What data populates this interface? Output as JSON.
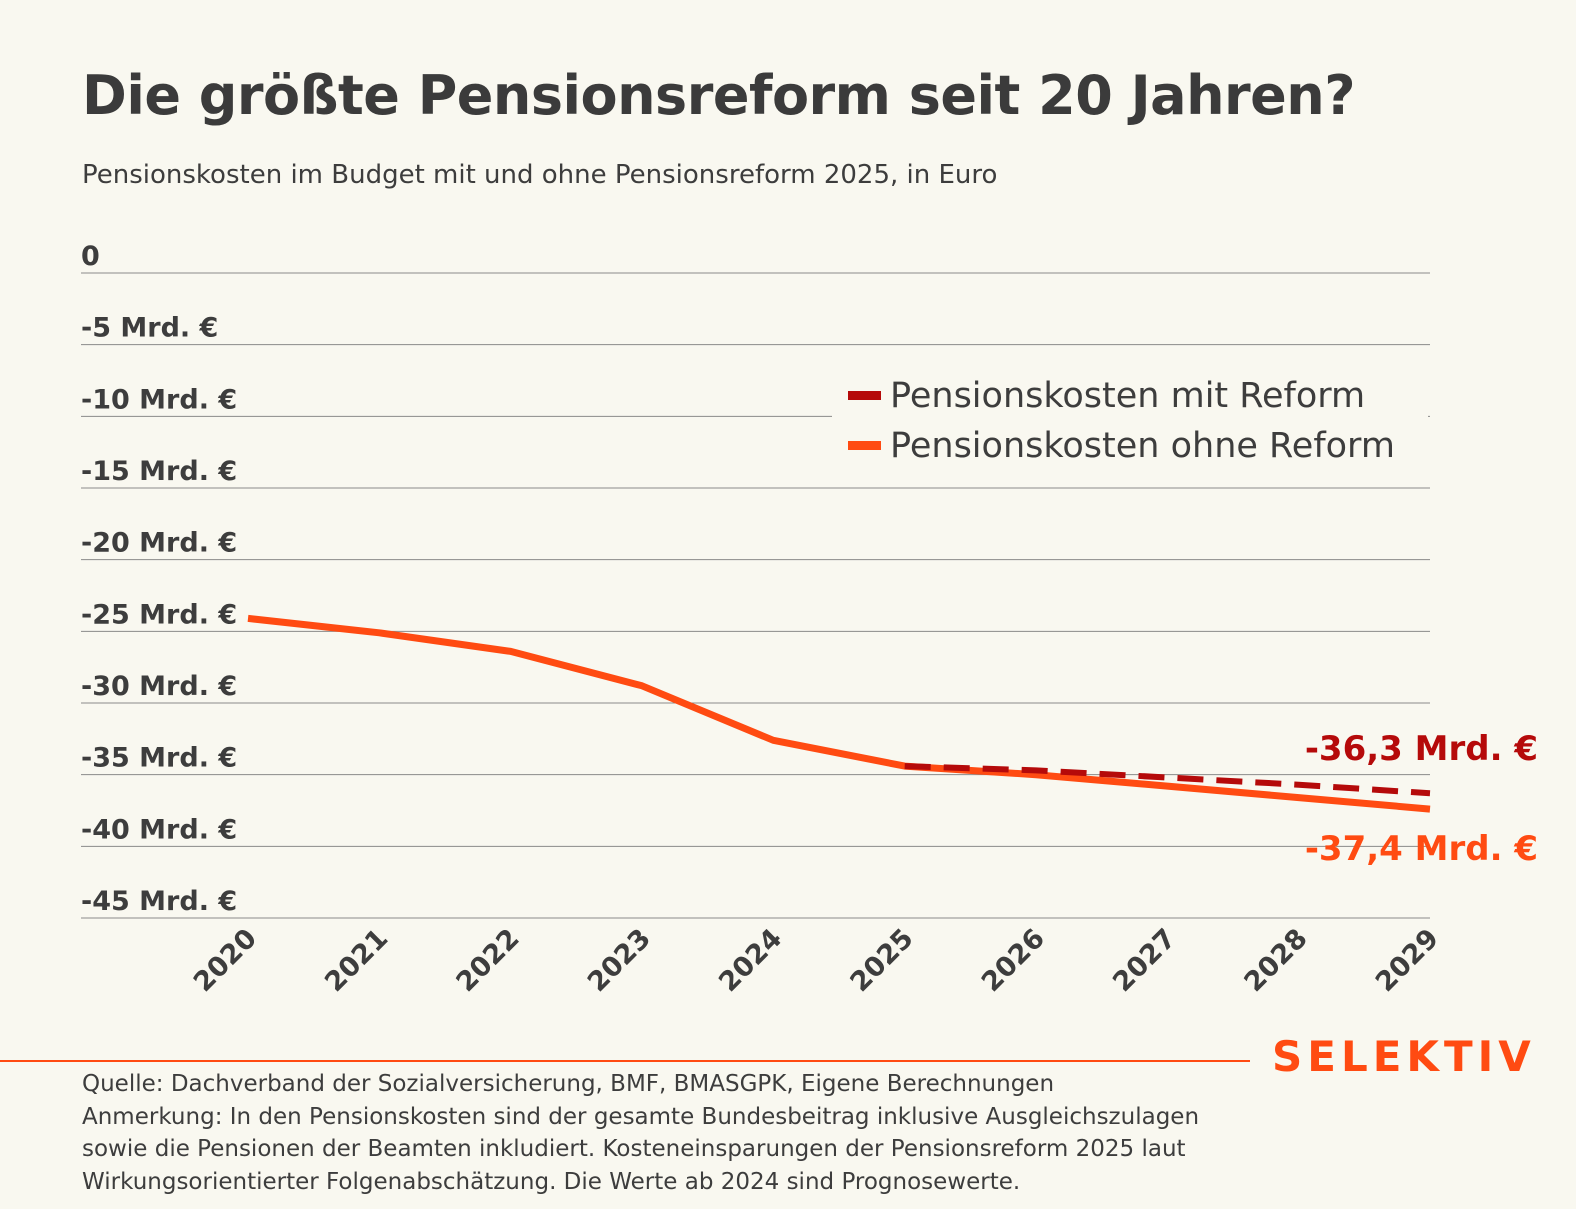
{
  "title": "Die größte Pensionsreform seit 20 Jahren?",
  "subtitle": "Pensionskosten im Budget mit und ohne Pensionsreform 2025, in Euro",
  "brand": "SELEKTIV",
  "notes": [
    "Quelle: Dachverband der Sozialversicherung, BMF, BMASGPK, Eigene Berechnungen",
    "Anmerkung: In den Pensionskosten sind der gesamte Bundesbeitrag inklusive Ausgleichszulagen",
    "sowie die Pensionen der Beamten inkludiert. Kosteneinsparungen der Pensionsreform 2025 laut",
    "Wirkungsorientierter Folgenabschätzung. Die Werte ab 2024 sind Prognosewerte."
  ],
  "chart_data": {
    "type": "line",
    "title": "Die größte Pensionsreform seit 20 Jahren?",
    "subtitle": "Pensionskosten im Budget mit und ohne Pensionsreform 2025, in Euro",
    "xlabel": "",
    "ylabel": "",
    "x": [
      "2020",
      "2021",
      "2022",
      "2023",
      "2024",
      "2025",
      "2026",
      "2027",
      "2028",
      "2029"
    ],
    "ylim": [
      -45,
      0
    ],
    "y_ticks": [
      0,
      -5,
      -10,
      -15,
      -20,
      -25,
      -30,
      -35,
      -40,
      -45
    ],
    "y_tick_labels": [
      "0",
      "-5 Mrd. €",
      "-10 Mrd. €",
      "-15 Mrd. €",
      "-20 Mrd. €",
      "-25 Mrd. €",
      "-30 Mrd. €",
      "-35 Mrd. €",
      "-40 Mrd. €",
      "-45 Mrd. €"
    ],
    "grid": true,
    "legend_position": "top-right",
    "series": [
      {
        "name": "Pensionskosten mit Reform",
        "color": "#b50a0a",
        "style": "dashed",
        "x": [
          "2025",
          "2026",
          "2027",
          "2028",
          "2029"
        ],
        "values": [
          -34.4,
          -34.7,
          -35.2,
          -35.7,
          -36.3
        ],
        "end_label": "-36,3 Mrd. €"
      },
      {
        "name": "Pensionskosten ohne Reform",
        "color": "#ff4b12",
        "style": "solid",
        "x": [
          "2020",
          "2021",
          "2022",
          "2023",
          "2024",
          "2025",
          "2026",
          "2027",
          "2028",
          "2029"
        ],
        "values": [
          -24.1,
          -25.1,
          -26.4,
          -28.8,
          -32.6,
          -34.4,
          -35.0,
          -35.8,
          -36.6,
          -37.4
        ],
        "end_label": "-37,4 Mrd. €"
      }
    ]
  }
}
